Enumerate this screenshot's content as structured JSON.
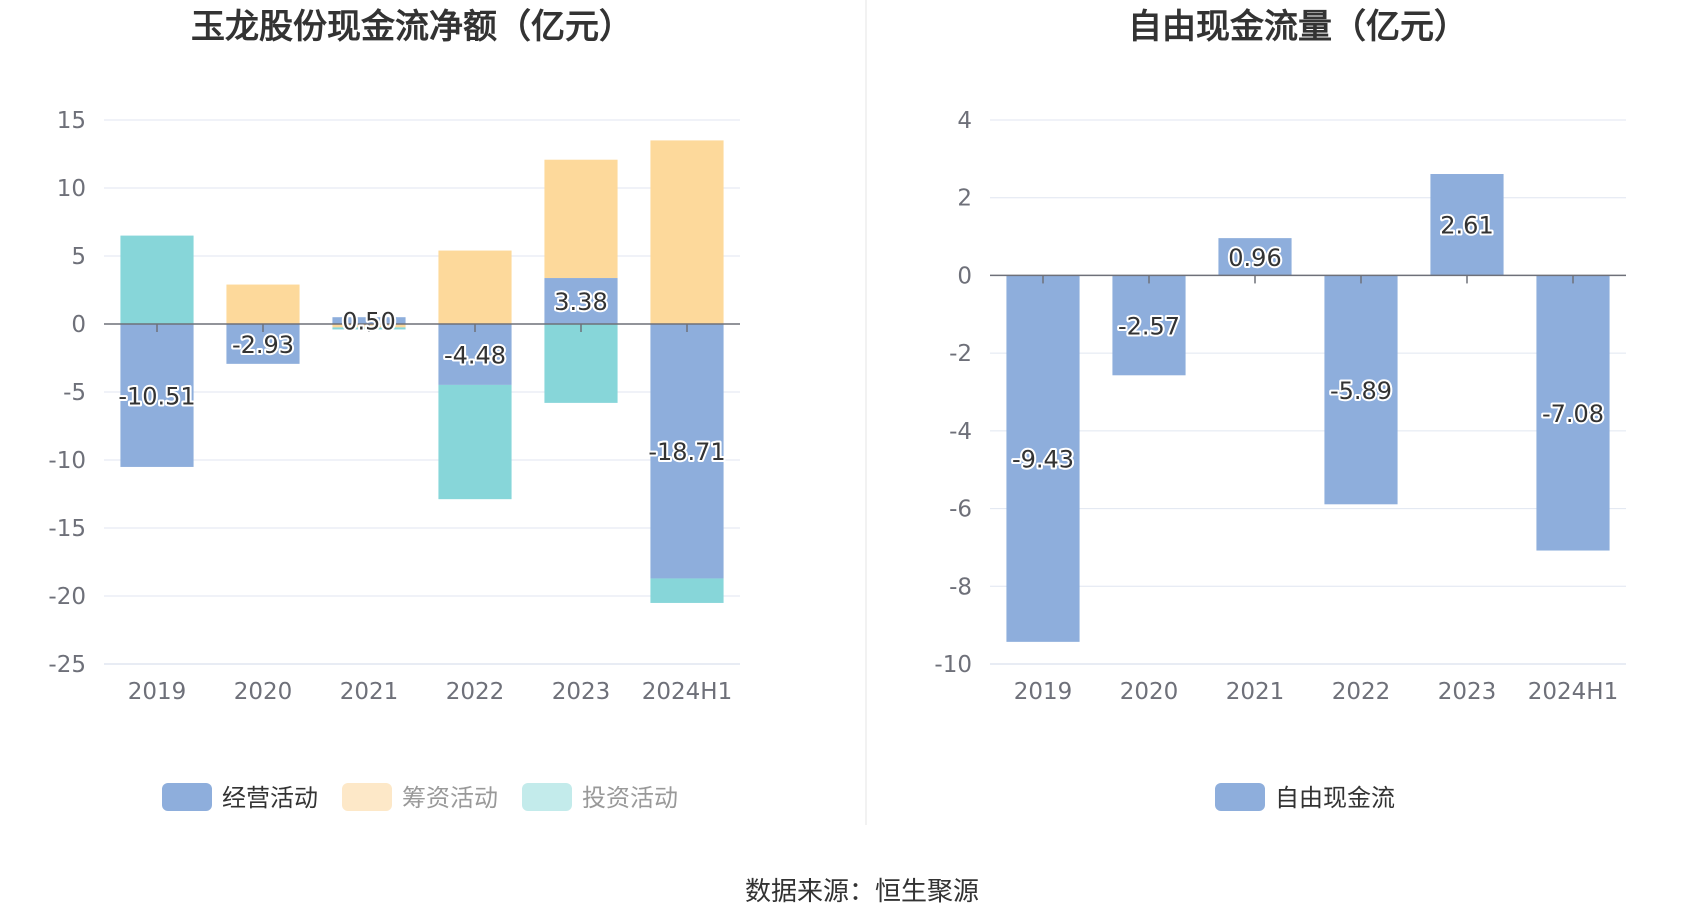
{
  "source": "数据来源：恒生聚源",
  "chart_data": [
    {
      "type": "bar",
      "stacked": true,
      "title": "玉龙股份现金流净额（亿元）",
      "categories": [
        "2019",
        "2020",
        "2021",
        "2022",
        "2023",
        "2024H1"
      ],
      "ylim": [
        -25,
        15
      ],
      "yticks": [
        15,
        10,
        5,
        0,
        -5,
        -10,
        -15,
        -20,
        -25
      ],
      "grid": true,
      "legend_position": "bottom",
      "series": [
        {
          "name": "经营活动",
          "color": "#8eaedc",
          "values": [
            -10.51,
            -2.93,
            0.5,
            -4.48,
            3.38,
            -18.71
          ],
          "labels": [
            "-10.51",
            "-2.93",
            "0.50",
            "-4.48",
            "3.38",
            "-18.71"
          ]
        },
        {
          "name": "筹资活动",
          "color": "#fdd99b",
          "values": [
            0,
            2.9,
            -0.25,
            5.4,
            8.7,
            13.5
          ]
        },
        {
          "name": "投资活动",
          "color": "#87d6d9",
          "values": [
            6.5,
            0,
            -0.15,
            -8.4,
            -5.8,
            -1.8
          ]
        }
      ],
      "legend": [
        {
          "name": "经营活动",
          "color": "#8eaedc",
          "active": true
        },
        {
          "name": "筹资活动",
          "color": "#fde8c8",
          "active": false
        },
        {
          "name": "投资活动",
          "color": "#c3ebeb",
          "active": false
        }
      ]
    },
    {
      "type": "bar",
      "title": "自由现金流量（亿元）",
      "categories": [
        "2019",
        "2020",
        "2021",
        "2022",
        "2023",
        "2024H1"
      ],
      "ylim": [
        -10,
        4
      ],
      "yticks": [
        4,
        2,
        0,
        -2,
        -4,
        -6,
        -8,
        -10
      ],
      "grid": true,
      "legend_position": "bottom",
      "series": [
        {
          "name": "自由现金流",
          "color": "#8eaedc",
          "values": [
            -9.43,
            -2.57,
            0.96,
            -5.89,
            2.61,
            -7.08
          ],
          "labels": [
            "-9.43",
            "-2.57",
            "0.96",
            "-5.89",
            "2.61",
            "-7.08"
          ]
        }
      ],
      "legend": [
        {
          "name": "自由现金流",
          "color": "#8eaedc",
          "active": true
        }
      ]
    }
  ]
}
